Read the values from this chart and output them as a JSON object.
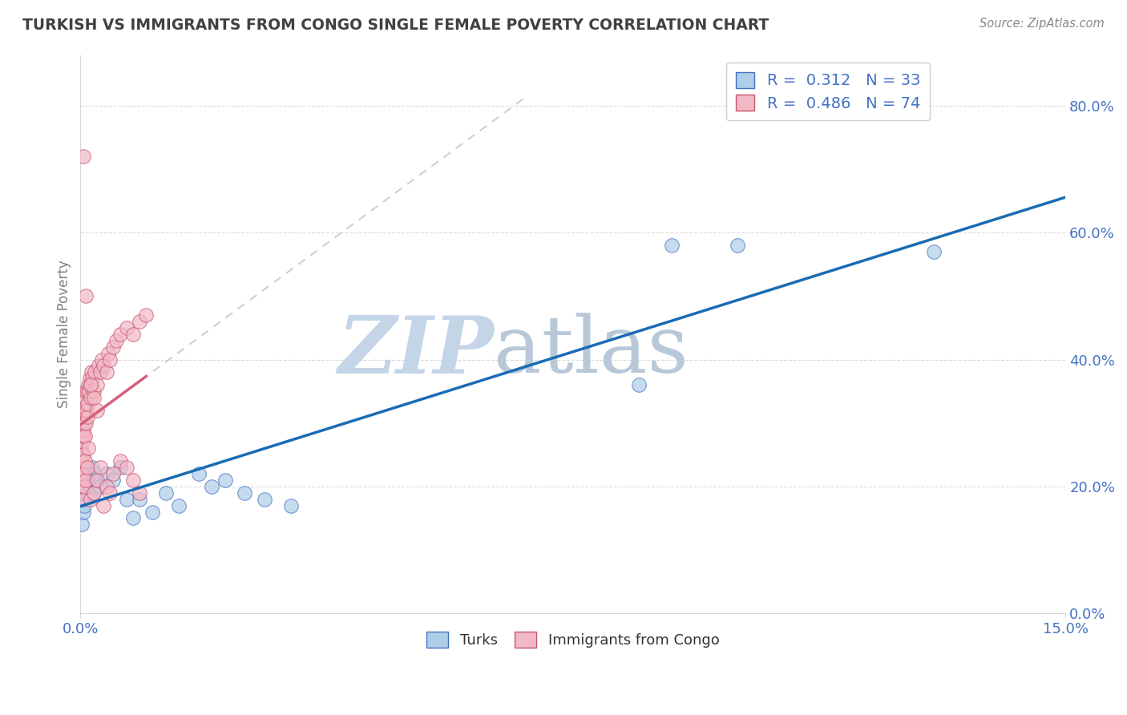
{
  "title": "TURKISH VS IMMIGRANTS FROM CONGO SINGLE FEMALE POVERTY CORRELATION CHART",
  "source": "Source: ZipAtlas.com",
  "ylabel": "Single Female Poverty",
  "legend_entries": [
    {
      "label": "Turks",
      "R": "0.312",
      "N": "33",
      "color": "#aecde8",
      "edge": "#4472c4"
    },
    {
      "label": "Immigrants from Congo",
      "R": "0.486",
      "N": "74",
      "color": "#f2b8c6",
      "edge": "#c9566e"
    }
  ],
  "turks_x": [
    0.0002,
    0.0004,
    0.0005,
    0.0006,
    0.0008,
    0.001,
    0.0012,
    0.0013,
    0.0015,
    0.0018,
    0.002,
    0.0022,
    0.0025,
    0.003,
    0.004,
    0.005,
    0.006,
    0.007,
    0.008,
    0.009,
    0.011,
    0.013,
    0.015,
    0.018,
    0.02,
    0.022,
    0.025,
    0.028,
    0.032,
    0.085,
    0.09,
    0.1,
    0.13
  ],
  "turks_y": [
    0.14,
    0.16,
    0.18,
    0.17,
    0.2,
    0.19,
    0.21,
    0.22,
    0.2,
    0.23,
    0.19,
    0.22,
    0.21,
    0.2,
    0.22,
    0.21,
    0.23,
    0.18,
    0.15,
    0.18,
    0.16,
    0.19,
    0.17,
    0.22,
    0.2,
    0.21,
    0.19,
    0.18,
    0.17,
    0.36,
    0.58,
    0.58,
    0.57
  ],
  "congo_x": [
    0.0001,
    0.0001,
    0.0002,
    0.0002,
    0.0003,
    0.0003,
    0.0003,
    0.0004,
    0.0004,
    0.0005,
    0.0005,
    0.0005,
    0.0006,
    0.0006,
    0.0007,
    0.0007,
    0.0008,
    0.0008,
    0.0009,
    0.001,
    0.001,
    0.0011,
    0.0012,
    0.0013,
    0.0014,
    0.0015,
    0.0016,
    0.0017,
    0.0018,
    0.002,
    0.0022,
    0.0025,
    0.0028,
    0.003,
    0.0032,
    0.0035,
    0.004,
    0.0042,
    0.0045,
    0.005,
    0.0055,
    0.006,
    0.007,
    0.008,
    0.009,
    0.01,
    0.0001,
    0.0001,
    0.0002,
    0.0003,
    0.0004,
    0.0005,
    0.0006,
    0.0007,
    0.0008,
    0.001,
    0.0012,
    0.0015,
    0.002,
    0.0025,
    0.003,
    0.004,
    0.005,
    0.006,
    0.007,
    0.008,
    0.009,
    0.0035,
    0.0045,
    0.0025,
    0.002,
    0.0015,
    0.0008,
    0.0005
  ],
  "congo_y": [
    0.26,
    0.28,
    0.25,
    0.3,
    0.27,
    0.3,
    0.32,
    0.28,
    0.31,
    0.29,
    0.31,
    0.33,
    0.3,
    0.32,
    0.28,
    0.34,
    0.3,
    0.35,
    0.32,
    0.31,
    0.35,
    0.33,
    0.36,
    0.35,
    0.37,
    0.34,
    0.36,
    0.38,
    0.37,
    0.35,
    0.38,
    0.36,
    0.39,
    0.38,
    0.4,
    0.39,
    0.38,
    0.41,
    0.4,
    0.42,
    0.43,
    0.44,
    0.45,
    0.44,
    0.46,
    0.47,
    0.22,
    0.24,
    0.2,
    0.18,
    0.25,
    0.22,
    0.2,
    0.24,
    0.21,
    0.23,
    0.26,
    0.18,
    0.19,
    0.21,
    0.23,
    0.2,
    0.22,
    0.24,
    0.23,
    0.21,
    0.19,
    0.17,
    0.19,
    0.32,
    0.34,
    0.36,
    0.5,
    0.72
  ],
  "turks_line_color": "#1a6bb5",
  "congo_line_color": "#d4607a",
  "dashed_line_color": "#c0b8b8",
  "watermark_zip": "ZIP",
  "watermark_atlas": "atlas",
  "watermark_color_zip": "#c5d5e8",
  "watermark_color_atlas": "#b8c8d8",
  "bg_color": "#ffffff",
  "grid_color": "#d8d8d8",
  "title_color": "#404040",
  "axis_label_color": "#4472c4",
  "ylabel_color": "#808080",
  "tick_color": "#4472c4",
  "xmin": 0.0,
  "xmax": 0.15,
  "ymin": 0.0,
  "ymax": 0.88
}
